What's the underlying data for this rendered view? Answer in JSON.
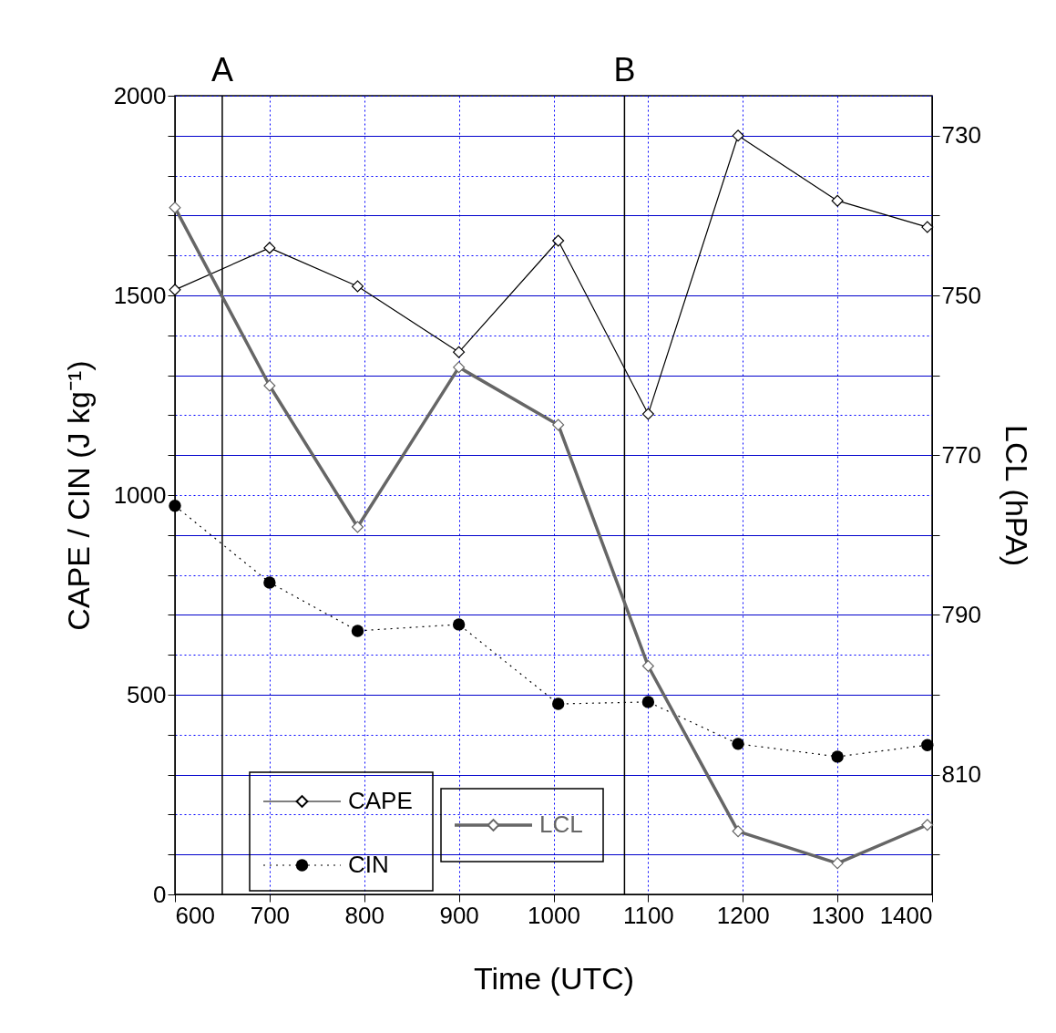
{
  "chart_data": {
    "type": "line",
    "xlabel": "Time (UTC)",
    "ylabel": "CAPE / CIN (J kg⁻¹)",
    "y2label": "LCL (hPA)",
    "xlim": [
      600,
      1400
    ],
    "xticks": [
      600,
      700,
      800,
      900,
      1000,
      1100,
      1200,
      1300,
      1400
    ],
    "ylim": [
      0,
      2000
    ],
    "yticks": [
      0,
      {
        "value": 100,
        "label": null
      },
      {
        "value": 200,
        "label": null
      },
      {
        "value": 300,
        "label": null
      },
      {
        "value": 400,
        "label": null
      },
      500,
      {
        "value": 600,
        "label": null
      },
      {
        "value": 700,
        "label": null
      },
      {
        "value": 800,
        "label": null
      },
      {
        "value": 900,
        "label": null
      },
      1000,
      {
        "value": 1100,
        "label": null
      },
      {
        "value": 1200,
        "label": null
      },
      {
        "value": 1300,
        "label": null
      },
      {
        "value": 1400,
        "label": null
      },
      1500,
      {
        "value": 1600,
        "label": null
      },
      {
        "value": 1700,
        "label": null
      },
      {
        "value": 1800,
        "label": null
      },
      {
        "value": 1900,
        "label": null
      },
      2000
    ],
    "y2lim": [
      825,
      725
    ],
    "y2ticks": [
      730,
      {
        "value": 740,
        "label": null
      },
      750,
      {
        "value": 760,
        "label": null
      },
      770,
      {
        "value": 780,
        "label": null
      },
      790,
      {
        "value": 800,
        "label": null
      },
      810,
      {
        "value": 820,
        "label": null
      }
    ],
    "grid": true,
    "legend": "bottom left",
    "ref_lines": [
      {
        "axis": "x",
        "value": 650,
        "label": "A"
      },
      {
        "axis": "x",
        "value": 1075,
        "label": "B"
      }
    ],
    "series": [
      {
        "name": "CAPE",
        "color": "#000000",
        "marker": "diamond",
        "line_style": "solid",
        "x": [
          600,
          700,
          793,
          900,
          1005,
          1100,
          1195,
          1300,
          1395
        ],
        "values": [
          1514,
          1619,
          1523,
          1358,
          1637,
          1203,
          1900,
          1737,
          1671
        ]
      },
      {
        "name": "CIN",
        "color": "#000000",
        "marker": "circle",
        "line_style": "dotted",
        "x": [
          600,
          700,
          793,
          900,
          1005,
          1100,
          1195,
          1300,
          1395
        ],
        "values": [
          973,
          781,
          660,
          676,
          477,
          482,
          377,
          345,
          374
        ]
      },
      {
        "name": "LCL",
        "color": "#666666",
        "marker": "diamond",
        "line_style": "solid",
        "axis": "y2",
        "x": [
          600,
          700,
          793,
          900,
          1005,
          1100,
          1195,
          1300,
          1395
        ],
        "values": [
          739.0,
          761.3,
          779.0,
          759.0,
          766.2,
          796.4,
          817.1,
          821.1,
          816.3
        ]
      }
    ]
  }
}
